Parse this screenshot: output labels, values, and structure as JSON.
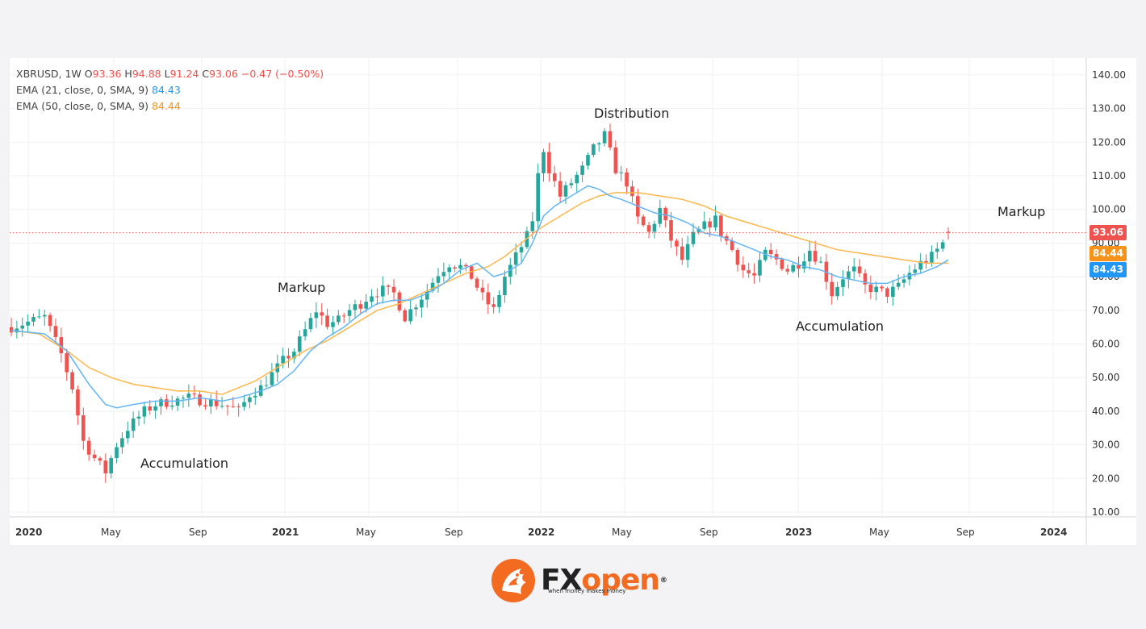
{
  "legend": {
    "symbol": "XBRUSD, 1W",
    "o_label": "O",
    "o": "93.36",
    "h_label": "H",
    "h": "94.88",
    "l_label": "L",
    "l": "91.24",
    "c_label": "C",
    "c": "93.06",
    "change": "−0.47 (−0.50%)",
    "ema21_label": "EMA (21, close, 0, SMA, 9)",
    "ema21_value": "84.43",
    "ema50_label": "EMA (50, close, 0, SMA, 9)",
    "ema50_value": "84.44"
  },
  "annotations": {
    "accumulation_1": "Accumulation",
    "markup_1": "Markup",
    "distribution": "Distribution",
    "accumulation_2": "Accumulation",
    "markup_2": "Markup"
  },
  "price_tags": {
    "last": "93.06",
    "ema50": "84.44",
    "ema21": "84.43"
  },
  "colors": {
    "up": "#26a69a",
    "down": "#ef5350",
    "ema21": "#64b5f6",
    "ema50": "#ffb74d",
    "tag_last": "#ef5350",
    "tag_ema50": "#f7931a",
    "tag_ema21": "#2196f3"
  },
  "logo": {
    "name_left": "FX",
    "name_right": "open",
    "reg": "®",
    "tagline": "when money makes money",
    "icon": "dragon-head-icon"
  },
  "chart_data": {
    "type": "candlestick",
    "symbol": "XBRUSD",
    "timeframe": "1W",
    "ylim": [
      10,
      140
    ],
    "y_ticks": [
      "10.00",
      "20.00",
      "30.00",
      "40.00",
      "50.00",
      "60.00",
      "70.00",
      "80.00",
      "90.00",
      "100.00",
      "110.00",
      "120.00",
      "130.00",
      "140.00"
    ],
    "x_ticks": [
      "2020",
      "May",
      "Sep",
      "2021",
      "May",
      "Sep",
      "2022",
      "May",
      "Sep",
      "2023",
      "May",
      "Sep",
      "2024"
    ],
    "close_path": [
      [
        0,
        65
      ],
      [
        6,
        68
      ],
      [
        9,
        57
      ],
      [
        11,
        47
      ],
      [
        13,
        31
      ],
      [
        15,
        26
      ],
      [
        17,
        22
      ],
      [
        19,
        30
      ],
      [
        21,
        35
      ],
      [
        24,
        40
      ],
      [
        26,
        42
      ],
      [
        29,
        43
      ],
      [
        32,
        44
      ],
      [
        35,
        43
      ],
      [
        38,
        42
      ],
      [
        40,
        41
      ],
      [
        41,
        40
      ],
      [
        43,
        45
      ],
      [
        45,
        47
      ],
      [
        47,
        51
      ],
      [
        49,
        55
      ],
      [
        51,
        58
      ],
      [
        53,
        64
      ],
      [
        55,
        70
      ],
      [
        57,
        66
      ],
      [
        59,
        67
      ],
      [
        61,
        70
      ],
      [
        63,
        72
      ],
      [
        65,
        75
      ],
      [
        67,
        76
      ],
      [
        69,
        75
      ],
      [
        71,
        68
      ],
      [
        73,
        72
      ],
      [
        75,
        76
      ],
      [
        77,
        81
      ],
      [
        79,
        84
      ],
      [
        81,
        83
      ],
      [
        83,
        80
      ],
      [
        85,
        74
      ],
      [
        87,
        70
      ],
      [
        89,
        80
      ],
      [
        91,
        86
      ],
      [
        93,
        92
      ],
      [
        94,
        97
      ],
      [
        95,
        110
      ],
      [
        96,
        118
      ],
      [
        97,
        112
      ],
      [
        99,
        104
      ],
      [
        101,
        108
      ],
      [
        103,
        112
      ],
      [
        105,
        118
      ],
      [
        107,
        122
      ],
      [
        109,
        112
      ],
      [
        111,
        108
      ],
      [
        113,
        97
      ],
      [
        115,
        93
      ],
      [
        117,
        100
      ],
      [
        119,
        91
      ],
      [
        121,
        85
      ],
      [
        123,
        92
      ],
      [
        125,
        95
      ],
      [
        127,
        97
      ],
      [
        128,
        93
      ],
      [
        130,
        88
      ],
      [
        132,
        82
      ],
      [
        134,
        80
      ],
      [
        136,
        87
      ],
      [
        138,
        85
      ],
      [
        140,
        82
      ],
      [
        142,
        84
      ],
      [
        144,
        88
      ],
      [
        146,
        84
      ],
      [
        148,
        75
      ],
      [
        150,
        80
      ],
      [
        152,
        82
      ],
      [
        154,
        77
      ],
      [
        156,
        76
      ],
      [
        158,
        75
      ],
      [
        160,
        77
      ],
      [
        162,
        81
      ],
      [
        164,
        84
      ],
      [
        166,
        86
      ],
      [
        168,
        90
      ],
      [
        169,
        93
      ]
    ],
    "ema21_path": [
      [
        0,
        64
      ],
      [
        6,
        63
      ],
      [
        10,
        58
      ],
      [
        14,
        48
      ],
      [
        17,
        42
      ],
      [
        19,
        41
      ],
      [
        22,
        42
      ],
      [
        26,
        43
      ],
      [
        30,
        43
      ],
      [
        34,
        44
      ],
      [
        38,
        43
      ],
      [
        41,
        44
      ],
      [
        45,
        46
      ],
      [
        48,
        48
      ],
      [
        51,
        52
      ],
      [
        54,
        58
      ],
      [
        57,
        62
      ],
      [
        60,
        65
      ],
      [
        63,
        69
      ],
      [
        66,
        72
      ],
      [
        69,
        73
      ],
      [
        72,
        73
      ],
      [
        75,
        75
      ],
      [
        78,
        78
      ],
      [
        81,
        82
      ],
      [
        84,
        84
      ],
      [
        87,
        80
      ],
      [
        89,
        81
      ],
      [
        92,
        84
      ],
      [
        94,
        90
      ],
      [
        96,
        98
      ],
      [
        98,
        101
      ],
      [
        101,
        104
      ],
      [
        104,
        107
      ],
      [
        106,
        106
      ],
      [
        108,
        104
      ],
      [
        110,
        103
      ],
      [
        113,
        101
      ],
      [
        116,
        99
      ],
      [
        119,
        98
      ],
      [
        122,
        96
      ],
      [
        125,
        93
      ],
      [
        128,
        92
      ],
      [
        131,
        90
      ],
      [
        134,
        88
      ],
      [
        137,
        86
      ],
      [
        140,
        85
      ],
      [
        143,
        83
      ],
      [
        146,
        82
      ],
      [
        149,
        80
      ],
      [
        152,
        79
      ],
      [
        155,
        78
      ],
      [
        158,
        78
      ],
      [
        161,
        80
      ],
      [
        164,
        81
      ],
      [
        167,
        83
      ],
      [
        169,
        85
      ]
    ],
    "ema50_path": [
      [
        0,
        64
      ],
      [
        5,
        63
      ],
      [
        10,
        58
      ],
      [
        14,
        53
      ],
      [
        18,
        50
      ],
      [
        22,
        48
      ],
      [
        26,
        47
      ],
      [
        30,
        46
      ],
      [
        34,
        46
      ],
      [
        38,
        45
      ],
      [
        41,
        47
      ],
      [
        44,
        49
      ],
      [
        47,
        52
      ],
      [
        50,
        55
      ],
      [
        53,
        58
      ],
      [
        57,
        61
      ],
      [
        60,
        64
      ],
      [
        63,
        67
      ],
      [
        66,
        70
      ],
      [
        70,
        72
      ],
      [
        74,
        75
      ],
      [
        78,
        78
      ],
      [
        82,
        81
      ],
      [
        86,
        83
      ],
      [
        89,
        86
      ],
      [
        92,
        90
      ],
      [
        95,
        94
      ],
      [
        99,
        98
      ],
      [
        103,
        102
      ],
      [
        106,
        104
      ],
      [
        109,
        105
      ],
      [
        113,
        105
      ],
      [
        117,
        104
      ],
      [
        121,
        103
      ],
      [
        125,
        101
      ],
      [
        129,
        98
      ],
      [
        133,
        96
      ],
      [
        137,
        94
      ],
      [
        141,
        92
      ],
      [
        145,
        90
      ],
      [
        149,
        88
      ],
      [
        153,
        87
      ],
      [
        157,
        86
      ],
      [
        161,
        85
      ],
      [
        165,
        84
      ],
      [
        169,
        84
      ]
    ],
    "last_close": 93.06,
    "ema21_last": 84.43,
    "ema50_last": 84.44
  }
}
